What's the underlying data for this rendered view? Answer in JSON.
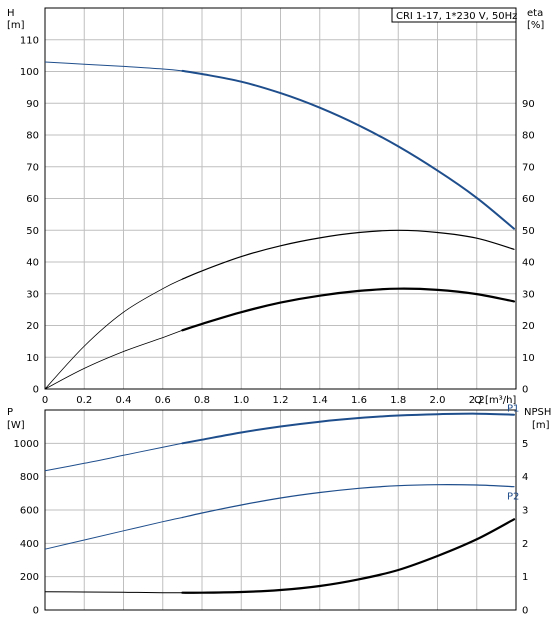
{
  "chart_data": [
    {
      "type": "line",
      "title": "CRI 1-17, 1*230 V, 50Hz",
      "x": {
        "label": "Q [m³/h]",
        "range": [
          0,
          2.4
        ],
        "ticks": [
          "0",
          "0.2",
          "0.4",
          "0.6",
          "0.8",
          "1.0",
          "1.2",
          "1.4",
          "1.6",
          "1.8",
          "2.0",
          "2.2"
        ]
      },
      "y_left": {
        "label": "H",
        "unit": "[m]",
        "range": [
          0,
          120
        ],
        "ticks": [
          "0",
          "10",
          "20",
          "30",
          "40",
          "50",
          "60",
          "70",
          "80",
          "90",
          "100",
          "110"
        ]
      },
      "y_right": {
        "label": "eta",
        "unit": "[%]",
        "range": [
          0,
          120
        ],
        "ticks": [
          "0",
          "10",
          "20",
          "30",
          "40",
          "50",
          "60",
          "70",
          "80",
          "90"
        ]
      },
      "grid": true,
      "series": [
        {
          "key": "head",
          "axis": "left",
          "color": "#1f4e8c",
          "x": [
            0,
            0.2,
            0.4,
            0.6,
            0.7,
            0.8,
            1.0,
            1.2,
            1.4,
            1.6,
            1.8,
            2.0,
            2.2,
            2.39
          ],
          "y": [
            103,
            102.3,
            101.6,
            100.8,
            100.2,
            99.2,
            96.8,
            93.2,
            88.6,
            83.0,
            76.4,
            68.8,
            60.2,
            50.5
          ]
        },
        {
          "key": "eta_pump",
          "axis": "right",
          "color": "#000000",
          "x": [
            0,
            0.2,
            0.4,
            0.6,
            0.7,
            0.8,
            1.0,
            1.2,
            1.4,
            1.6,
            1.8,
            2.0,
            2.2,
            2.39
          ],
          "y": [
            0,
            13.5,
            24.2,
            31.6,
            34.6,
            37.2,
            41.7,
            45.1,
            47.6,
            49.3,
            50.0,
            49.3,
            47.5,
            44.0
          ]
        },
        {
          "key": "eta_total",
          "axis": "right",
          "color": "#000000",
          "x": [
            0,
            0.2,
            0.4,
            0.6,
            0.7,
            0.8,
            1.0,
            1.2,
            1.4,
            1.6,
            1.8,
            2.0,
            2.2,
            2.39
          ],
          "y": [
            0,
            6.5,
            11.8,
            16.2,
            18.5,
            20.5,
            24.2,
            27.2,
            29.4,
            30.9,
            31.6,
            31.2,
            29.9,
            27.6
          ]
        }
      ]
    },
    {
      "type": "line",
      "x": {
        "label": "",
        "range": [
          0,
          2.4
        ],
        "ticks": []
      },
      "y_left": {
        "label": "P",
        "unit": "[W]",
        "range": [
          0,
          1200
        ],
        "ticks": [
          "0",
          "200",
          "400",
          "600",
          "800",
          "1000"
        ]
      },
      "y_right": {
        "label": "NPSH",
        "unit": "[m]",
        "range": [
          0,
          6
        ],
        "ticks": [
          "0",
          "1",
          "2",
          "3",
          "4",
          "5"
        ]
      },
      "grid": true,
      "series": [
        {
          "key": "P1",
          "name": "P1",
          "axis": "left",
          "color": "#1f4e8c",
          "x": [
            0,
            0.2,
            0.4,
            0.6,
            0.7,
            0.8,
            1.0,
            1.2,
            1.4,
            1.6,
            1.8,
            2.0,
            2.2,
            2.39
          ],
          "y": [
            835,
            880,
            928,
            977,
            1000,
            1022,
            1065,
            1101,
            1130,
            1152,
            1167,
            1175,
            1178,
            1172
          ]
        },
        {
          "key": "P2",
          "name": "P2",
          "axis": "left",
          "color": "#1f4e8c",
          "x": [
            0,
            0.2,
            0.4,
            0.6,
            0.7,
            0.8,
            1.0,
            1.2,
            1.4,
            1.6,
            1.8,
            2.0,
            2.2,
            2.39
          ],
          "y": [
            365,
            420,
            475,
            530,
            555,
            582,
            630,
            672,
            705,
            730,
            746,
            752,
            750,
            740
          ]
        },
        {
          "key": "npsh",
          "axis": "right",
          "color": "#000000",
          "x": [
            0,
            0.2,
            0.4,
            0.6,
            0.7,
            0.8,
            1.0,
            1.2,
            1.4,
            1.6,
            1.8,
            2.0,
            2.2,
            2.39
          ],
          "y": [
            0.55,
            0.54,
            0.53,
            0.52,
            0.52,
            0.52,
            0.54,
            0.6,
            0.72,
            0.92,
            1.2,
            1.62,
            2.12,
            2.72
          ]
        }
      ]
    }
  ]
}
